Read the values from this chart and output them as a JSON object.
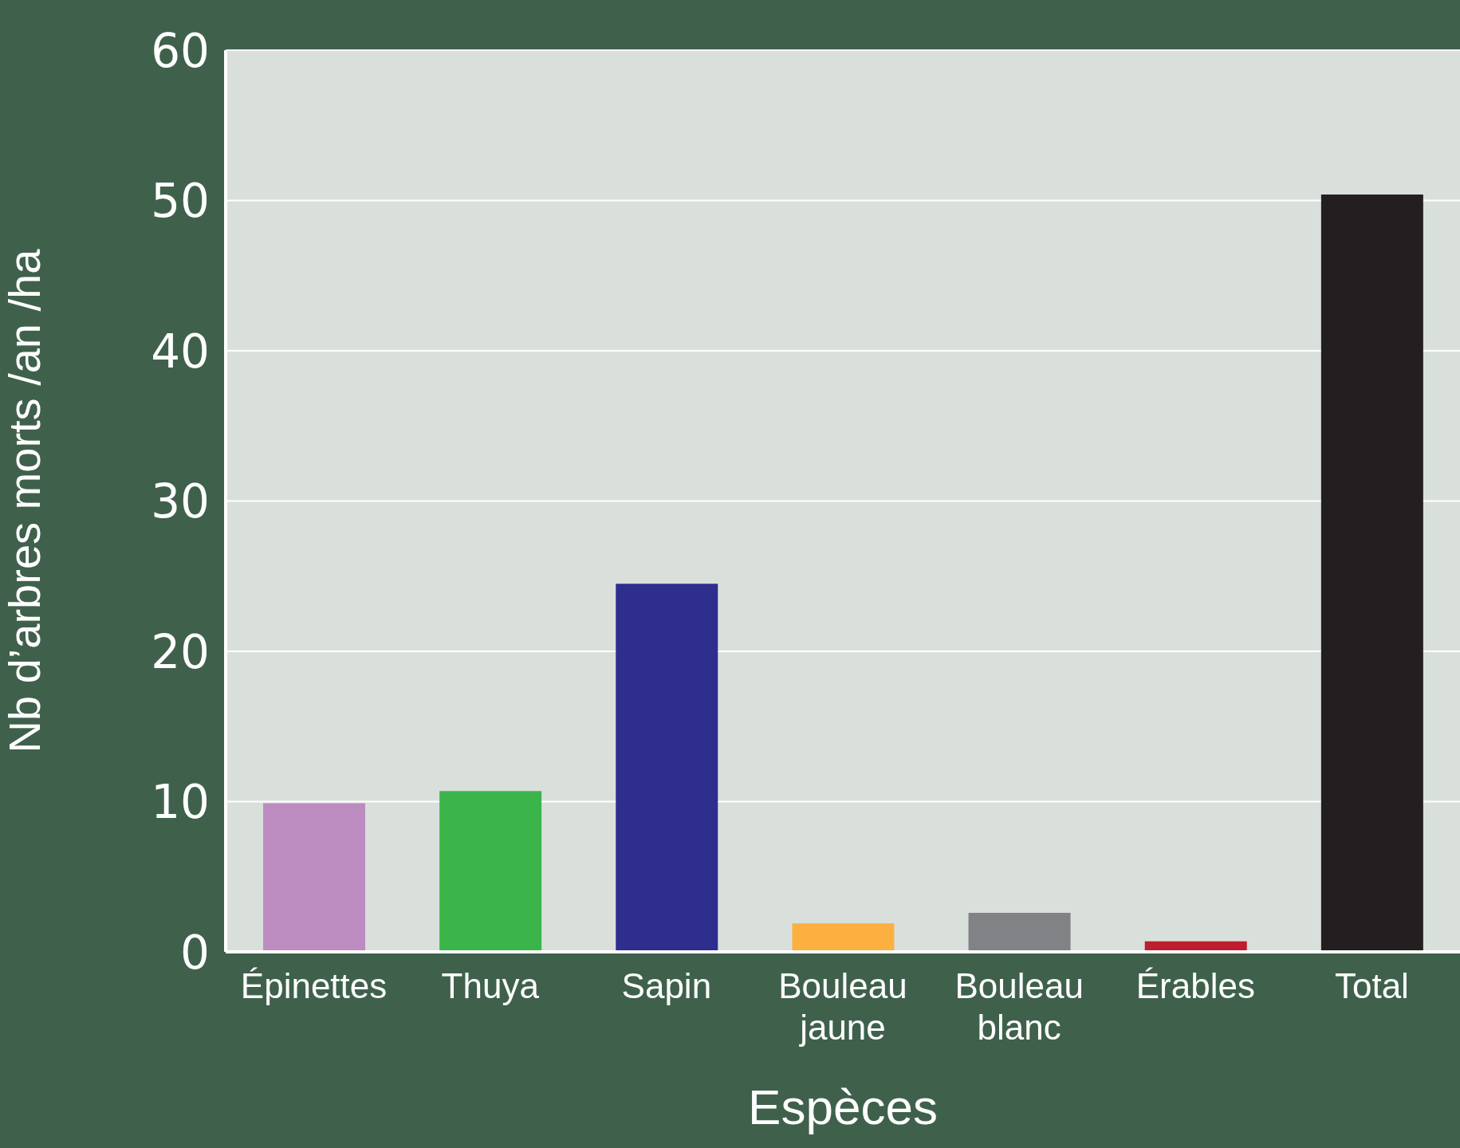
{
  "chart_data": {
    "type": "bar",
    "xlabel": "Espèces",
    "ylabel": "Nb d’arbres morts /an /ha",
    "categories": [
      "Épinettes",
      "Thuya",
      "Sapin",
      "Bouleau jaune",
      "Bouleau blanc",
      "Érables",
      "Total"
    ],
    "values": [
      9.9,
      10.7,
      24.5,
      1.9,
      2.6,
      0.7,
      50.4
    ],
    "colors": [
      "#bc8cc0",
      "#3bb54a",
      "#2e2e8f",
      "#fbb040",
      "#808285",
      "#be1e2d",
      "#231f20"
    ],
    "ylim": [
      0,
      60
    ],
    "yticks": [
      0,
      10,
      20,
      30,
      40,
      50,
      60
    ],
    "grid": "y"
  }
}
